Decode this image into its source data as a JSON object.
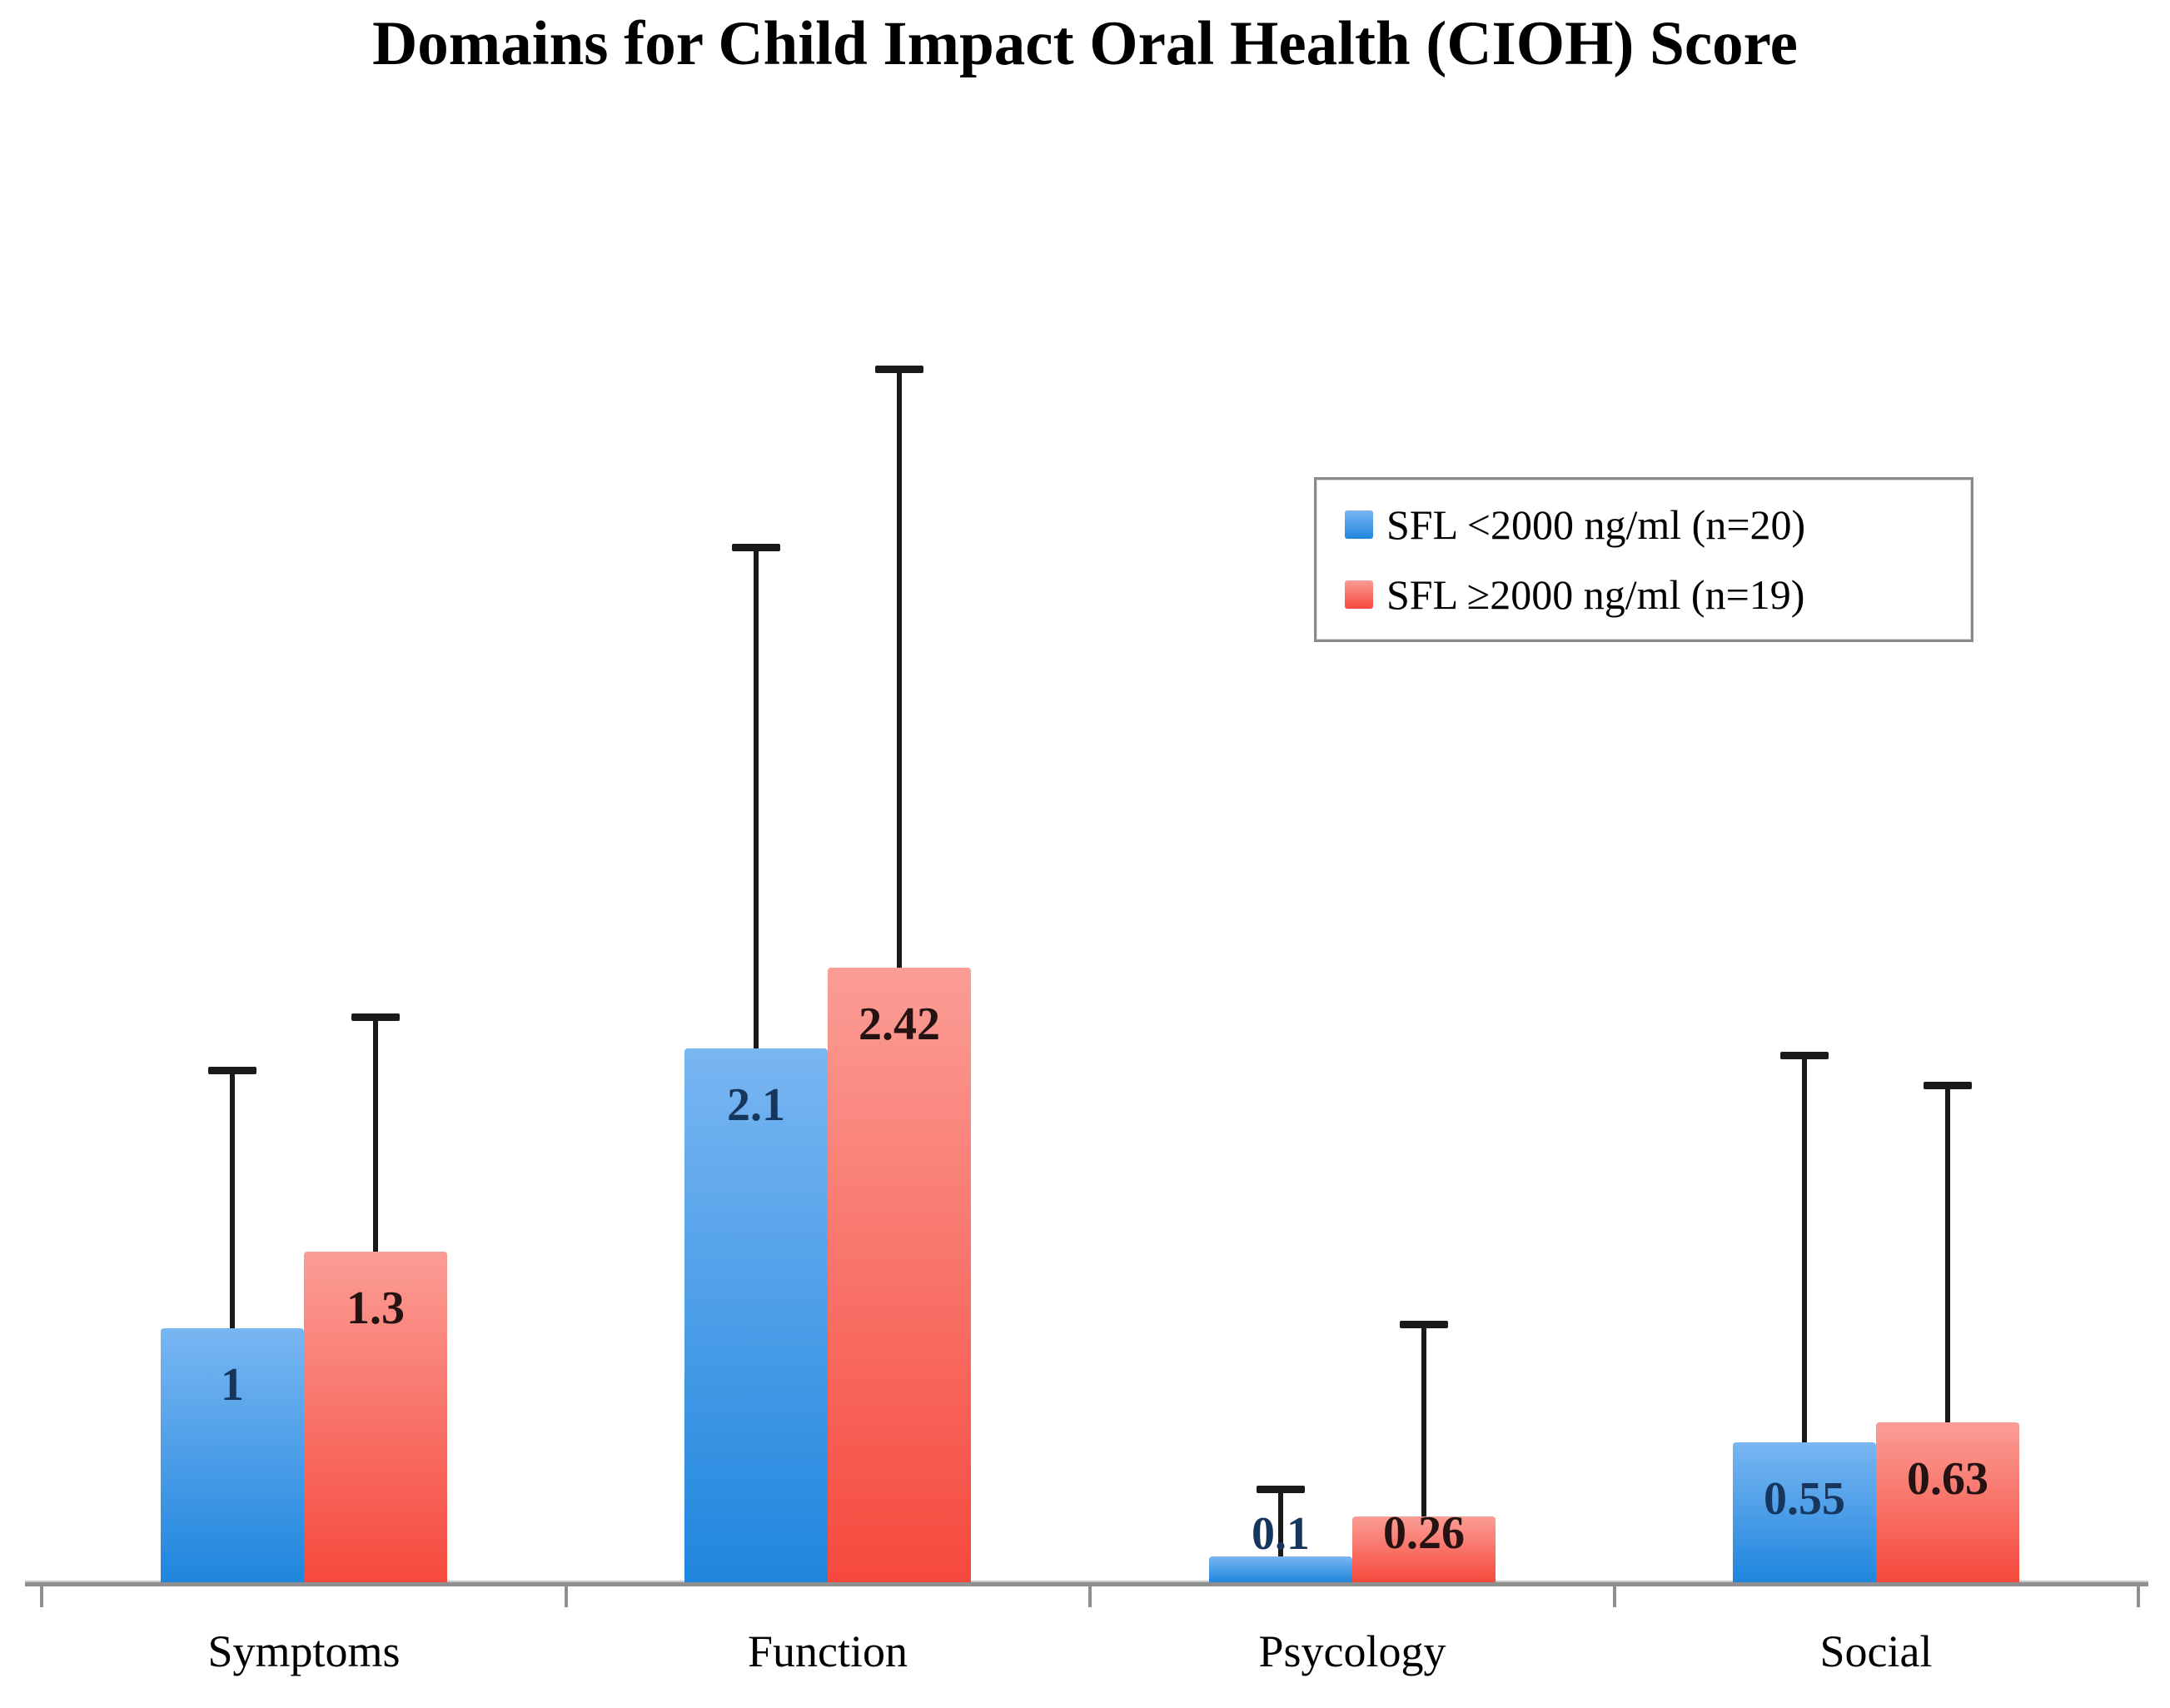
{
  "title": "Domains for Child Impact Oral Health (CIOH) Score",
  "legend": {
    "items": [
      {
        "label": "SFL <2000 ng/ml (n=20)"
      },
      {
        "label": "SFL ≥2000 ng/ml (n=19)"
      }
    ]
  },
  "chart_data": {
    "type": "bar",
    "title": "Domains for Child Impact Oral Health (CIOH) Score",
    "categories": [
      "Symptoms",
      "Function",
      "Psycology",
      "Social"
    ],
    "series": [
      {
        "name": "SFL <2000 ng/ml (n=20)",
        "values": [
          1,
          2.1,
          0.1,
          0.55
        ],
        "labels": [
          "1",
          "2.1",
          "0.1",
          "0.55"
        ],
        "error_top": [
          2.03,
          4.09,
          0.38,
          2.09
        ],
        "color_top": "#79b6f2",
        "color_bottom": "#1f86dd",
        "label_color": "#17365d"
      },
      {
        "name": "SFL ≥2000 ng/ml (n=19)",
        "values": [
          1.3,
          2.42,
          0.26,
          0.63
        ],
        "labels": [
          "1.3",
          "2.42",
          "0.26",
          "0.63"
        ],
        "error_top": [
          2.24,
          4.79,
          1.03,
          1.97
        ],
        "color_top": "#fb9d95",
        "color_bottom": "#f6493d",
        "label_color": "#241312"
      }
    ],
    "xlabel": "",
    "ylabel": "",
    "ylim": [
      0,
      5
    ],
    "grid": false,
    "legend_position": "upper right",
    "error_bars": "upper only",
    "value_labels": "shown on bars"
  }
}
